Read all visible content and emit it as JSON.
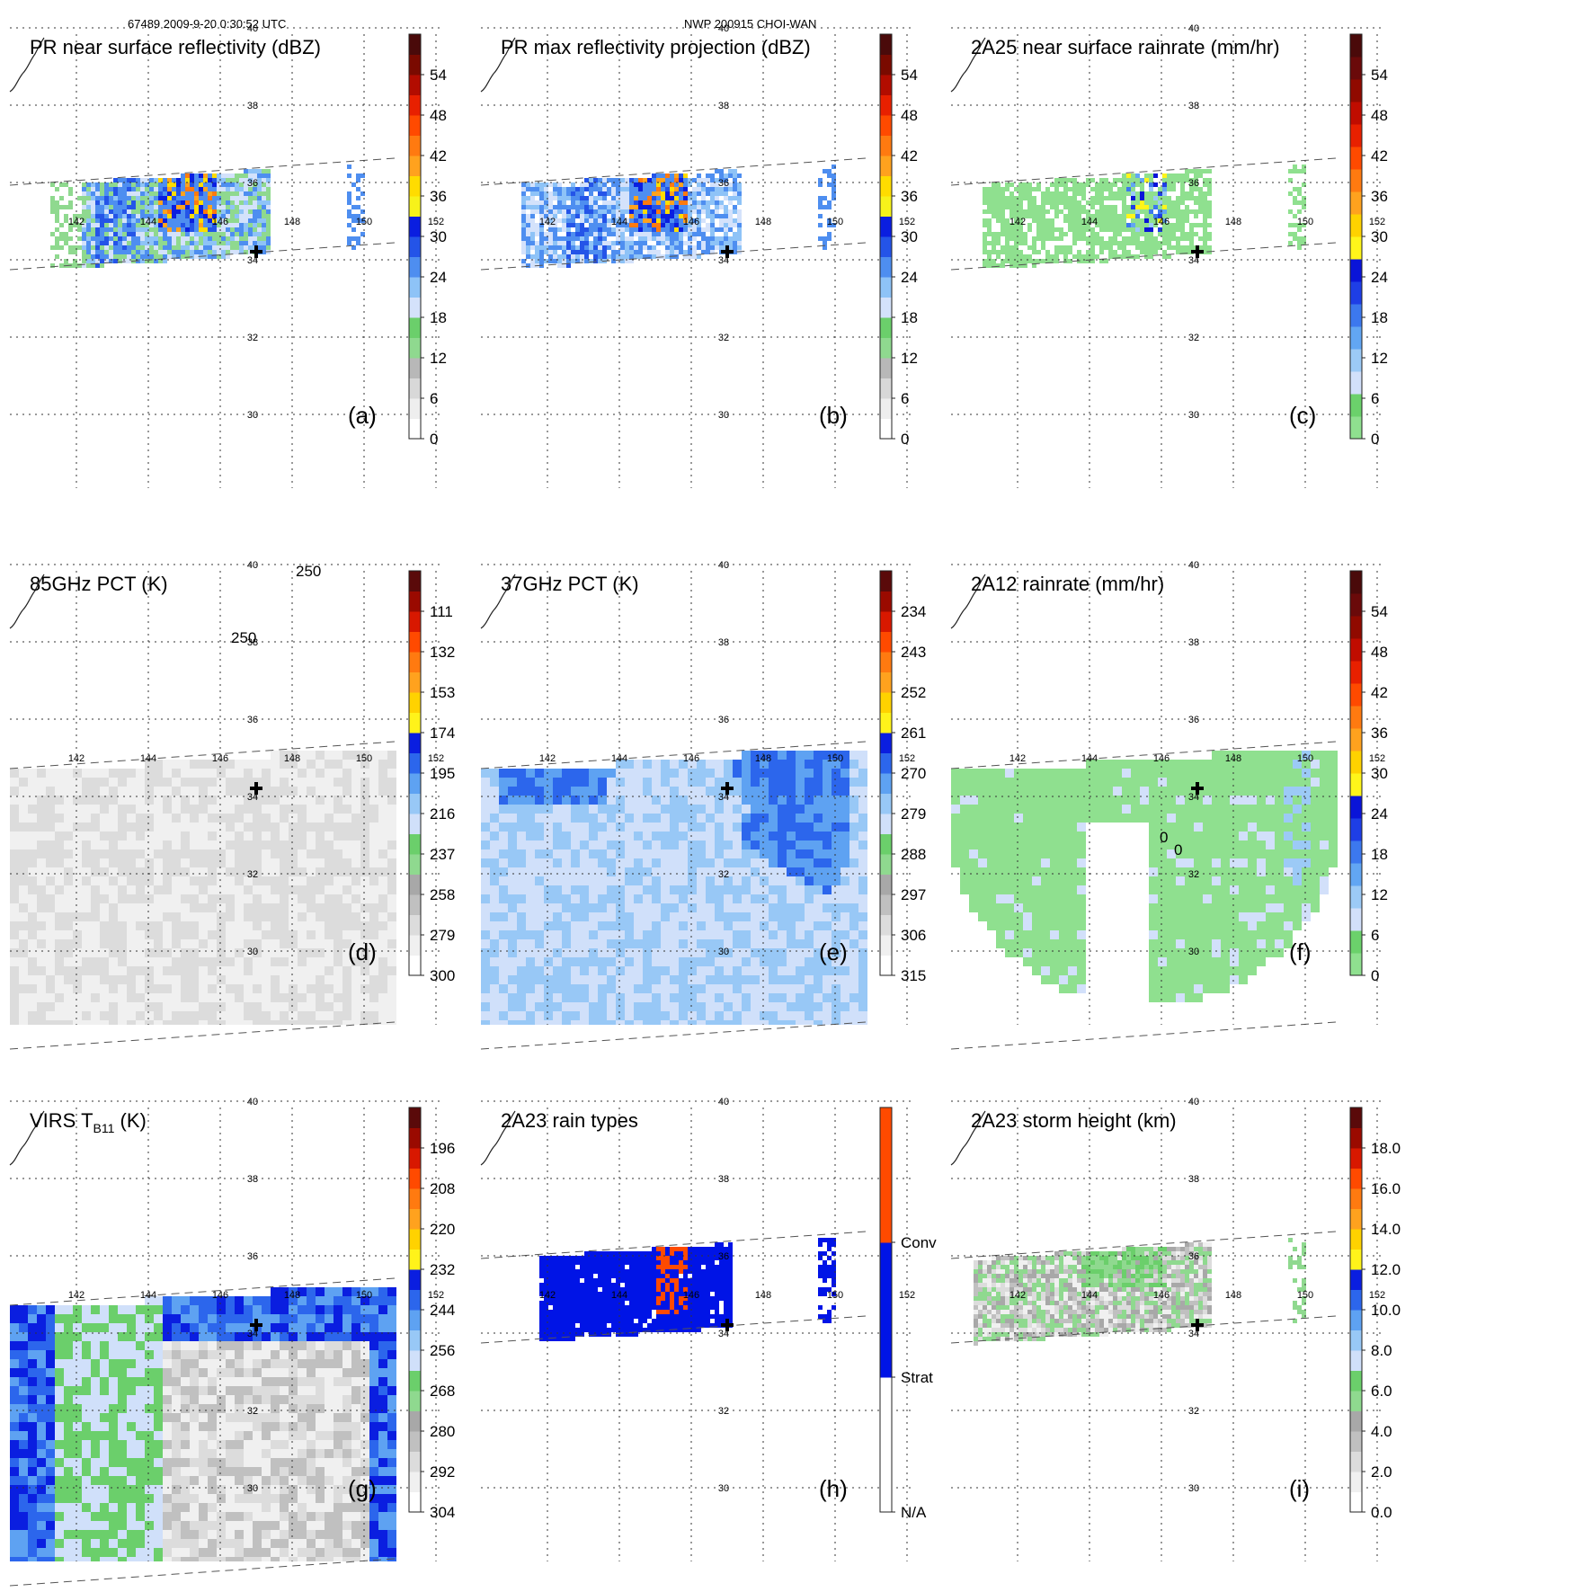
{
  "header": {
    "left": "67489 2009-9-20 0:30:52 UTC",
    "center": "NWP 200915 CHOI-WAN"
  },
  "chart_data": [
    {
      "id": "a",
      "type": "heatmap",
      "letter": "(a)",
      "title": "PR near surface reflectivity (dBZ)",
      "cmap": "dbz",
      "ticks": [
        "0",
        "6",
        "12",
        "18",
        "24",
        "30",
        "36",
        "42",
        "48",
        "54"
      ],
      "lon_ticks": [
        "142",
        "144",
        "146",
        "148",
        "150",
        "152"
      ],
      "lat_ticks": [
        "30",
        "32",
        "34",
        "36",
        "38",
        "40"
      ],
      "swath": "narrow",
      "storm_center": {
        "lon": 147,
        "lat": 34
      }
    },
    {
      "id": "b",
      "type": "heatmap",
      "letter": "(b)",
      "title": "PR max reflectivity projection (dBZ)",
      "cmap": "dbz",
      "ticks": [
        "0",
        "6",
        "12",
        "18",
        "24",
        "30",
        "36",
        "42",
        "48",
        "54"
      ],
      "lon_ticks": [
        "142",
        "144",
        "146",
        "148",
        "150",
        "152"
      ],
      "lat_ticks": [
        "30",
        "32",
        "34",
        "36",
        "38",
        "40"
      ],
      "swath": "narrow",
      "storm_center": {
        "lon": 147,
        "lat": 34
      }
    },
    {
      "id": "c",
      "type": "heatmap",
      "letter": "(c)",
      "title": "2A25 near surface rainrate (mm/hr)",
      "cmap": "rain",
      "ticks": [
        "0",
        "6",
        "12",
        "18",
        "24",
        "30",
        "36",
        "42",
        "48",
        "54"
      ],
      "lon_ticks": [
        "142",
        "144",
        "146",
        "148",
        "150",
        "152"
      ],
      "lat_ticks": [
        "30",
        "32",
        "34",
        "36",
        "38",
        "40"
      ],
      "swath": "narrow",
      "storm_center": {
        "lon": 147,
        "lat": 34
      }
    },
    {
      "id": "d",
      "type": "heatmap",
      "letter": "(d)",
      "title": "85GHz PCT (K)",
      "cmap": "pct85",
      "ticks": [
        "300",
        "279",
        "258",
        "237",
        "216",
        "195",
        "174",
        "153",
        "132",
        "111"
      ],
      "lon_ticks": [
        "142",
        "144",
        "146",
        "148",
        "150",
        "152"
      ],
      "lat_ticks": [
        "30",
        "32",
        "34",
        "36",
        "38",
        "40"
      ],
      "contour_labels": [
        "250",
        "250"
      ],
      "swath": "wide",
      "storm_center": {
        "lon": 147,
        "lat": 34
      }
    },
    {
      "id": "e",
      "type": "heatmap",
      "letter": "(e)",
      "title": "37GHz PCT (K)",
      "cmap": "pct37",
      "ticks": [
        "315",
        "306",
        "297",
        "288",
        "279",
        "270",
        "261",
        "252",
        "243",
        "234"
      ],
      "lon_ticks": [
        "142",
        "144",
        "146",
        "148",
        "150",
        "152"
      ],
      "lat_ticks": [
        "30",
        "32",
        "34",
        "36",
        "38",
        "40"
      ],
      "swath": "wide",
      "storm_center": {
        "lon": 147,
        "lat": 34
      }
    },
    {
      "id": "f",
      "type": "heatmap",
      "letter": "(f)",
      "title": "2A12 rainrate (mm/hr)",
      "cmap": "rain",
      "ticks": [
        "0",
        "6",
        "12",
        "18",
        "24",
        "30",
        "36",
        "42",
        "48",
        "54"
      ],
      "lon_ticks": [
        "142",
        "144",
        "146",
        "148",
        "150",
        "152"
      ],
      "lat_ticks": [
        "30",
        "32",
        "34",
        "36",
        "38",
        "40"
      ],
      "contour_labels": [
        "0",
        "0"
      ],
      "swath": "wide",
      "storm_center": {
        "lon": 147,
        "lat": 34
      }
    },
    {
      "id": "g",
      "type": "heatmap",
      "letter": "(g)",
      "title": "VIRS T",
      "title_sub": "B11",
      "title_suffix": " (K)",
      "cmap": "virs",
      "ticks": [
        "304",
        "292",
        "280",
        "268",
        "256",
        "244",
        "232",
        "220",
        "208",
        "196"
      ],
      "lon_ticks": [
        "142",
        "144",
        "146",
        "148",
        "150",
        "152"
      ],
      "lat_ticks": [
        "30",
        "32",
        "34",
        "36",
        "38",
        "40"
      ],
      "swath": "wide",
      "storm_center": {
        "lon": 147,
        "lat": 34
      }
    },
    {
      "id": "h",
      "type": "heatmap",
      "letter": "(h)",
      "title": "2A23 rain types",
      "cmap": "raintype",
      "ticks": [
        "N/A",
        "Strat",
        "Conv"
      ],
      "lon_ticks": [
        "142",
        "144",
        "146",
        "148",
        "150",
        "152"
      ],
      "lat_ticks": [
        "30",
        "32",
        "34",
        "36",
        "38",
        "40"
      ],
      "swath": "narrow",
      "storm_center": {
        "lon": 147,
        "lat": 34
      }
    },
    {
      "id": "i",
      "type": "heatmap",
      "letter": "(i)",
      "title": "2A23 storm height (km)",
      "cmap": "height",
      "ticks": [
        "0.0",
        "2.0",
        "4.0",
        "6.0",
        "8.0",
        "10.0",
        "12.0",
        "14.0",
        "16.0",
        "18.0"
      ],
      "lon_ticks": [
        "142",
        "144",
        "146",
        "148",
        "150",
        "152"
      ],
      "lat_ticks": [
        "30",
        "32",
        "34",
        "36",
        "38",
        "40"
      ],
      "swath": "narrow",
      "storm_center": {
        "lon": 147,
        "lat": 34
      }
    }
  ],
  "colors": {
    "dbz": [
      "#ffffff",
      "#eeeeee",
      "#d8d8d8",
      "#b8b8b8",
      "#8fd98f",
      "#6bcf6b",
      "#d4e2fb",
      "#8ec3f7",
      "#4e8ef0",
      "#2454e8",
      "#0a1ee0",
      "#f7f21a",
      "#ffdc00",
      "#ffa21e",
      "#ff7a10",
      "#ff4a00",
      "#e82000",
      "#b20c00",
      "#7a0a00",
      "#4a0a0a"
    ],
    "rain": [
      "#8fe08f",
      "#6bd16b",
      "#d2e0fa",
      "#9ccaf6",
      "#62a6f3",
      "#3c78ee",
      "#1e3ee6",
      "#0a14d8",
      "#fff51a",
      "#ffd200",
      "#ffa21e",
      "#ff7a10",
      "#ff4a00",
      "#e82000",
      "#c00c00",
      "#900a00",
      "#6a0a0a",
      "#4a0a0a"
    ],
    "pct85": [
      "#ffffff",
      "#f0f0f0",
      "#dcdcdc",
      "#c0c0c0",
      "#a8a8a8",
      "#8fd98f",
      "#6bcf6b",
      "#d0e0fa",
      "#98c8f6",
      "#5ea2f2",
      "#2c66ec",
      "#0a1ee0",
      "#fff31a",
      "#ffd200",
      "#ffa21e",
      "#ff7a10",
      "#ff4a00",
      "#d81800",
      "#9a0a00",
      "#5a0a0a"
    ],
    "pct37": [
      "#ffffff",
      "#f0f0f0",
      "#dcdcdc",
      "#c0c0c0",
      "#a8a8a8",
      "#8fd98f",
      "#6bcf6b",
      "#d0e0fa",
      "#98c8f6",
      "#5ea2f2",
      "#2c66ec",
      "#0a1ee0",
      "#fff31a",
      "#ffd200",
      "#ffa21e",
      "#ff7a10",
      "#ff4a00",
      "#d81800",
      "#9a0a00",
      "#5a0a0a"
    ],
    "virs": [
      "#ffffff",
      "#f0f0f0",
      "#dcdcdc",
      "#c0c0c0",
      "#a8a8a8",
      "#8fd98f",
      "#6bcf6b",
      "#d0e0fa",
      "#98c8f6",
      "#5ea2f2",
      "#2c66ec",
      "#0a1ee0",
      "#fff31a",
      "#ffd200",
      "#ffa21e",
      "#ff7a10",
      "#ff4a00",
      "#d81800",
      "#9a0a00",
      "#5a0a0a"
    ],
    "height": [
      "#ffffff",
      "#f0f0f0",
      "#dcdcdc",
      "#c0c0c0",
      "#a8a8a8",
      "#8fd98f",
      "#6bcf6b",
      "#d0e0fa",
      "#98c8f6",
      "#5ea2f2",
      "#2c66ec",
      "#0a1ee0",
      "#fff31a",
      "#ffd200",
      "#ffa21e",
      "#ff7a10",
      "#ff4a00",
      "#d81800",
      "#9a0a00",
      "#5a0a0a"
    ],
    "raintype": [
      "#ffffff",
      "#0014e6",
      "#ff4a00"
    ]
  }
}
